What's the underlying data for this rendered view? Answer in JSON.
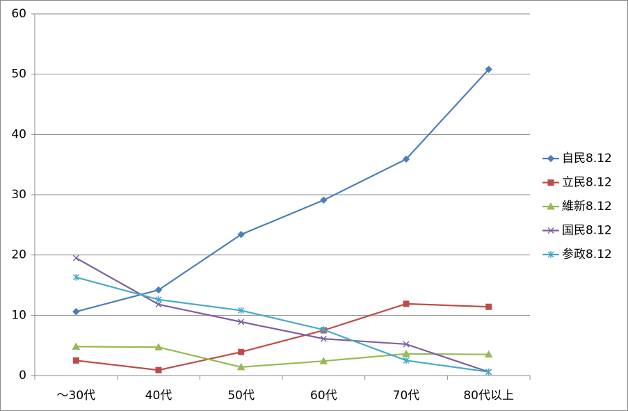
{
  "chart_data": {
    "type": "line",
    "categories": [
      "～30代",
      "40代",
      "50代",
      "60代",
      "70代",
      "80代以上"
    ],
    "series": [
      {
        "name": "自民8.12",
        "color": "#4a7ebb",
        "marker": "diamond",
        "values": [
          10.6,
          14.2,
          23.4,
          29.1,
          35.9,
          50.8
        ]
      },
      {
        "name": "立民8.12",
        "color": "#be4b48",
        "marker": "square",
        "values": [
          2.5,
          0.9,
          3.9,
          7.5,
          11.9,
          11.4
        ]
      },
      {
        "name": "維新8.12",
        "color": "#98b954",
        "marker": "triangle",
        "values": [
          4.8,
          4.7,
          1.4,
          2.4,
          3.6,
          3.5
        ]
      },
      {
        "name": "国民8.12",
        "color": "#7d60a0",
        "marker": "x",
        "values": [
          19.5,
          11.8,
          8.9,
          6.1,
          5.2,
          0.6
        ]
      },
      {
        "name": "参政8.12",
        "color": "#46aac5",
        "marker": "star",
        "values": [
          16.3,
          12.6,
          10.8,
          7.6,
          2.5,
          0.6
        ]
      }
    ],
    "ylim": [
      0,
      60
    ],
    "yticks": [
      0,
      10,
      20,
      30,
      40,
      50,
      60
    ],
    "grid": true,
    "legend": "right"
  }
}
